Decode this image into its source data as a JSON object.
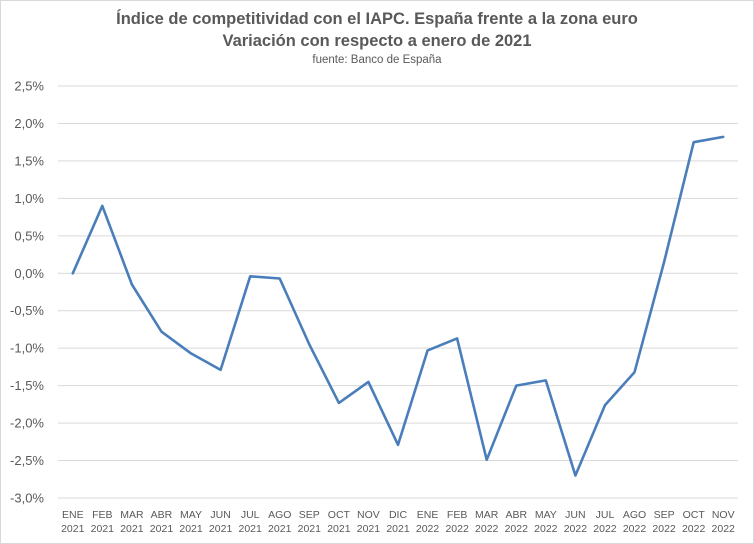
{
  "chart_data": {
    "type": "line",
    "title": "Índice de competitividad con el IAPC. España frente a la zona euro",
    "subtitle": "Variación con respecto a enero de 2021",
    "source": "fuente: Banco de España",
    "xlabel": "",
    "ylabel": "",
    "ylim": [
      -3.0,
      2.5
    ],
    "y_ticks": [
      "2,5%",
      "2,0%",
      "1,5%",
      "1,0%",
      "0,5%",
      "0,0%",
      "-0,5%",
      "-1,0%",
      "-1,5%",
      "-2,0%",
      "-2,5%",
      "-3,0%"
    ],
    "categories": [
      [
        "ENE",
        "2021"
      ],
      [
        "FEB",
        "2021"
      ],
      [
        "MAR",
        "2021"
      ],
      [
        "ABR",
        "2021"
      ],
      [
        "MAY",
        "2021"
      ],
      [
        "JUN",
        "2021"
      ],
      [
        "JUL",
        "2021"
      ],
      [
        "AGO",
        "2021"
      ],
      [
        "SEP",
        "2021"
      ],
      [
        "OCT",
        "2021"
      ],
      [
        "NOV",
        "2021"
      ],
      [
        "DIC",
        "2021"
      ],
      [
        "ENE",
        "2022"
      ],
      [
        "FEB",
        "2022"
      ],
      [
        "MAR",
        "2022"
      ],
      [
        "ABR",
        "2022"
      ],
      [
        "MAY",
        "2022"
      ],
      [
        "JUN",
        "2022"
      ],
      [
        "JUL",
        "2022"
      ],
      [
        "AGO",
        "2022"
      ],
      [
        "SEP",
        "2022"
      ],
      [
        "OCT",
        "2022"
      ],
      [
        "NOV",
        "2022"
      ]
    ],
    "values": [
      0.0,
      0.9,
      -0.15,
      -0.78,
      -1.07,
      -1.29,
      -0.04,
      -0.07,
      -0.95,
      -1.73,
      -1.45,
      -2.29,
      -1.03,
      -0.87,
      -2.49,
      -1.5,
      -1.43,
      -2.7,
      -1.76,
      -1.32,
      0.15,
      1.75,
      1.82
    ],
    "grid": true,
    "line_color": "#4a7ebb"
  }
}
